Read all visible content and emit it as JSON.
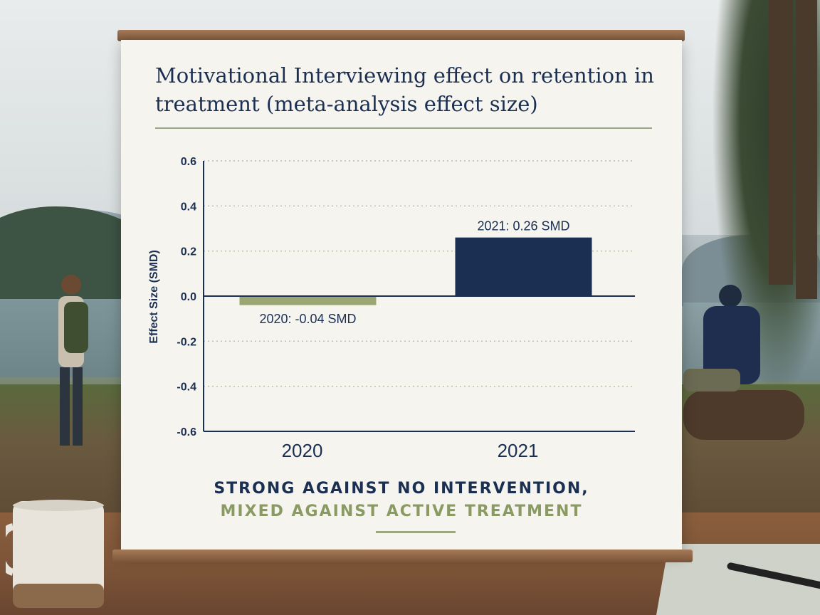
{
  "colors": {
    "navy": "#1a2f52",
    "olive": "#9aa772",
    "board": "#f6f4ee"
  },
  "board": {
    "title": "Motivational Interviewing effect on retention in treatment (meta-analysis effect size)",
    "caption_line1": "STRONG AGAINST NO INTERVENTION,",
    "caption_line2": "MIXED AGAINST ACTIVE TREATMENT"
  },
  "chart_data": {
    "type": "bar",
    "title": "Motivational Interviewing effect on retention in treatment (meta-analysis effect size)",
    "categories": [
      "2020",
      "2021"
    ],
    "values": [
      -0.04,
      0.26
    ],
    "bar_colors": [
      "#9aa772",
      "#1a2f52"
    ],
    "data_labels": [
      "2020: -0.04 SMD",
      "2021: 0.26 SMD"
    ],
    "xlabel": "",
    "ylabel": "Effect Size (SMD)",
    "ylim": [
      -0.6,
      0.6
    ],
    "yticks": [
      0.6,
      0.4,
      0.2,
      0.0,
      -0.2,
      -0.4,
      -0.6
    ],
    "ytick_labels": [
      "0.6",
      "0.4",
      "0.2",
      "0.0",
      "-0.2",
      "-0.4",
      "-0.6"
    ],
    "grid": true,
    "legend": "none"
  }
}
